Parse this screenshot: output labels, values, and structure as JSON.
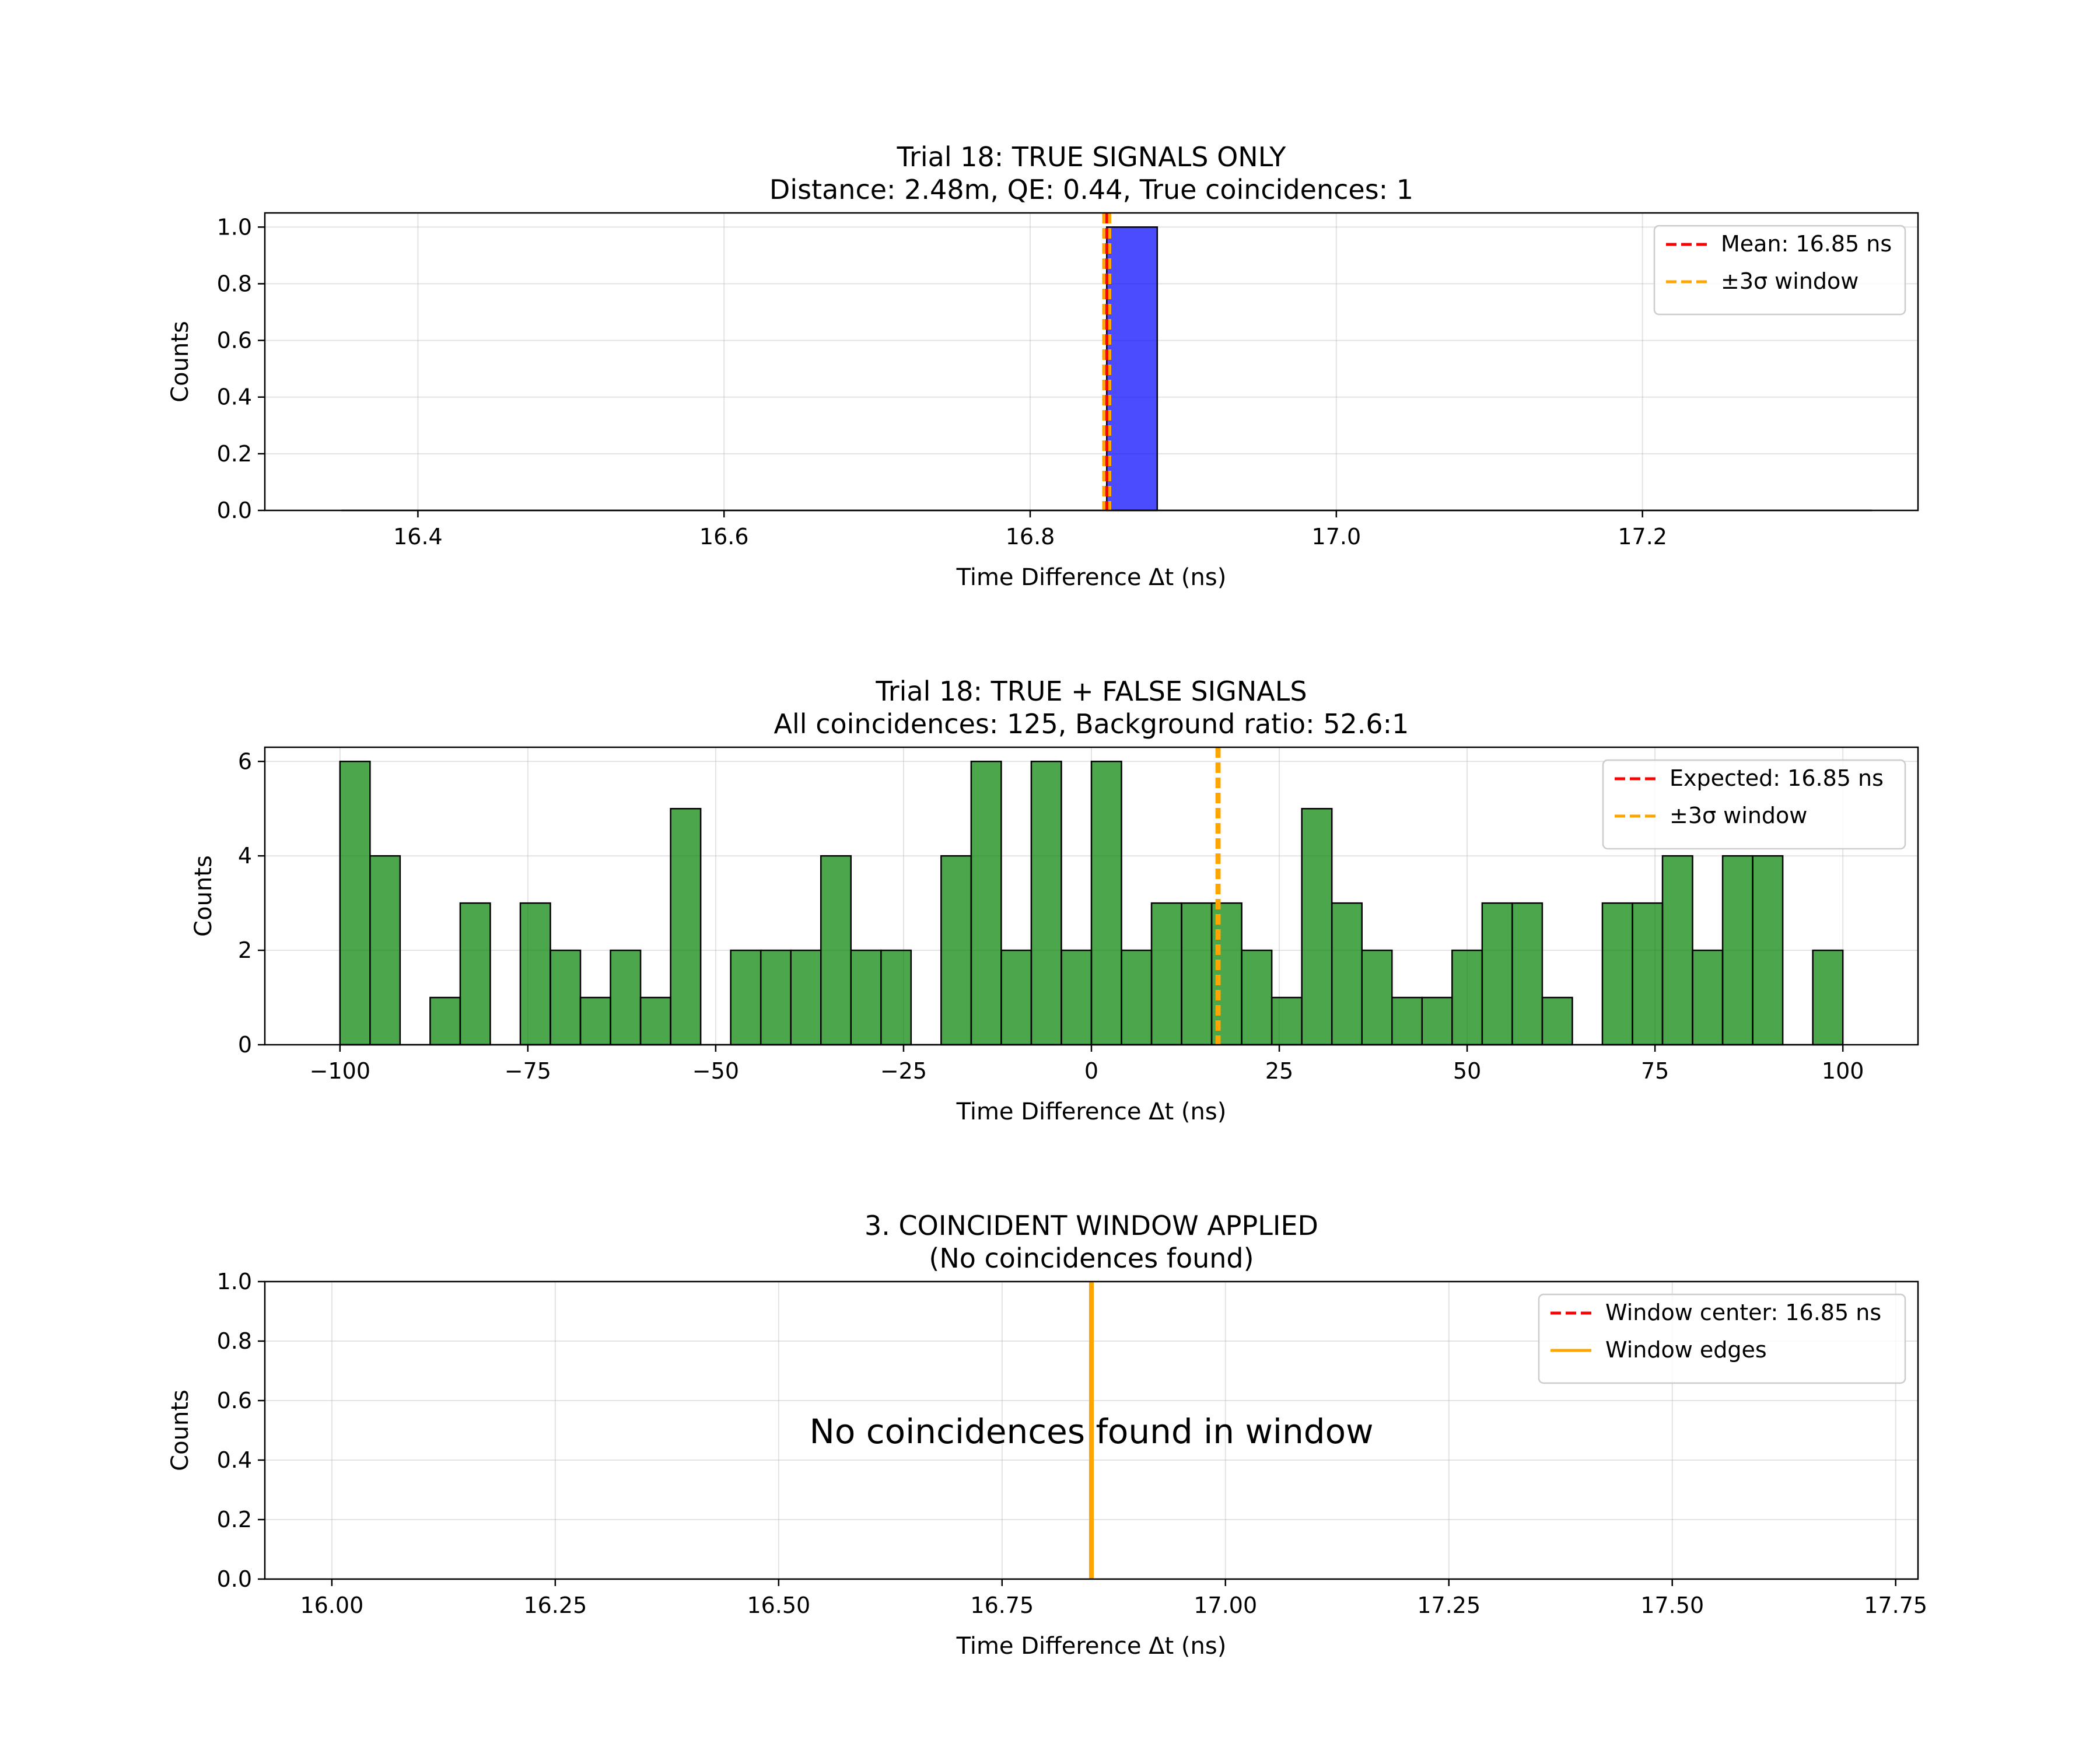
{
  "chart_data": [
    {
      "type": "bar",
      "title": "Trial 18: TRUE SIGNALS ONLY",
      "subtitle": "Distance: 2.48m, QE: 0.44, True coincidences: 1",
      "xlabel": "Time Difference Δt (ns)",
      "ylabel": "Counts",
      "xlim": [
        16.3,
        17.38
      ],
      "ylim": [
        0,
        1.05
      ],
      "xticks": [
        16.4,
        16.6,
        16.8,
        17.0,
        17.2
      ],
      "xtick_labels": [
        "16.4",
        "16.6",
        "16.8",
        "17.0",
        "17.2"
      ],
      "yticks": [
        0,
        0.2,
        0.4,
        0.6,
        0.8,
        1.0
      ],
      "ytick_labels": [
        "0.0",
        "0.2",
        "0.4",
        "0.6",
        "0.8",
        "1.0"
      ],
      "grid": true,
      "bar_color": "#0000ff",
      "bars": [
        {
          "x0": 16.85,
          "x1": 16.883,
          "value": 1
        }
      ],
      "baseline": [
        16.35,
        17.35
      ],
      "vlines": [
        {
          "x": 16.85,
          "color": "#ff0000",
          "style": "dashed"
        },
        {
          "x": 16.848,
          "color": "#ffa500",
          "style": "dashed"
        },
        {
          "x": 16.852,
          "color": "#ffa500",
          "style": "dashed"
        }
      ],
      "legend": {
        "position": "top-right",
        "entries": [
          {
            "label": "Mean: 16.85 ns",
            "color": "#ff0000",
            "style": "dashed"
          },
          {
            "label": "±3σ window",
            "color": "#ffa500",
            "style": "dashed"
          }
        ]
      }
    },
    {
      "type": "bar",
      "title": "Trial 18: TRUE + FALSE SIGNALS",
      "subtitle": "All coincidences: 125, Background ratio: 52.6:1",
      "xlabel": "Time Difference Δt (ns)",
      "ylabel": "Counts",
      "xlim": [
        -110,
        110
      ],
      "ylim": [
        0,
        6.3
      ],
      "xticks": [
        -100,
        -75,
        -50,
        -25,
        0,
        25,
        50,
        75,
        100
      ],
      "xtick_labels": [
        "−100",
        "−75",
        "−50",
        "−25",
        "0",
        "25",
        "50",
        "75",
        "100"
      ],
      "yticks": [
        0,
        2,
        4,
        6
      ],
      "ytick_labels": [
        "0",
        "2",
        "4",
        "6"
      ],
      "grid": true,
      "bar_color": "#008000",
      "bin_start": -100,
      "bin_width": 4,
      "values": [
        6,
        4,
        0,
        1,
        3,
        0,
        3,
        2,
        1,
        2,
        1,
        5,
        0,
        2,
        2,
        2,
        4,
        2,
        2,
        0,
        4,
        6,
        2,
        6,
        2,
        6,
        2,
        3,
        3,
        3,
        2,
        1,
        5,
        3,
        2,
        1,
        1,
        2,
        3,
        3,
        1,
        0,
        3,
        3,
        4,
        2,
        4,
        4,
        0,
        2
      ],
      "vlines": [
        {
          "x": 16.85,
          "color": "#ff0000",
          "style": "dashed"
        },
        {
          "x": 16.7,
          "color": "#ffa500",
          "style": "dashed"
        },
        {
          "x": 17.0,
          "color": "#ffa500",
          "style": "dashed"
        }
      ],
      "legend": {
        "position": "top-right",
        "entries": [
          {
            "label": "Expected: 16.85 ns",
            "color": "#ff0000",
            "style": "dashed"
          },
          {
            "label": "±3σ window",
            "color": "#ffa500",
            "style": "dashed"
          }
        ]
      }
    },
    {
      "type": "bar",
      "title": "3. COINCIDENT WINDOW APPLIED",
      "subtitle": "(No coincidences found)",
      "xlabel": "Time Difference Δt (ns)",
      "ylabel": "Counts",
      "xlim": [
        15.925,
        17.775
      ],
      "ylim": [
        0,
        1.0
      ],
      "xticks": [
        16.0,
        16.25,
        16.5,
        16.75,
        17.0,
        17.25,
        17.5,
        17.75
      ],
      "xtick_labels": [
        "16.00",
        "16.25",
        "16.50",
        "16.75",
        "17.00",
        "17.25",
        "17.50",
        "17.75"
      ],
      "yticks": [
        0,
        0.2,
        0.4,
        0.6,
        0.8,
        1.0
      ],
      "ytick_labels": [
        "0.0",
        "0.2",
        "0.4",
        "0.6",
        "0.8",
        "1.0"
      ],
      "grid": true,
      "values": [],
      "annotation": "No coincidences found in window",
      "vlines": [
        {
          "x": 16.85,
          "color": "#ff0000",
          "style": "dashed"
        },
        {
          "x": 16.849,
          "color": "#ffa500",
          "style": "solid"
        },
        {
          "x": 16.851,
          "color": "#ffa500",
          "style": "solid"
        }
      ],
      "legend": {
        "position": "top-right",
        "entries": [
          {
            "label": "Window center: 16.85 ns",
            "color": "#ff0000",
            "style": "dashed"
          },
          {
            "label": "Window edges",
            "color": "#ffa500",
            "style": "solid"
          }
        ]
      }
    }
  ]
}
